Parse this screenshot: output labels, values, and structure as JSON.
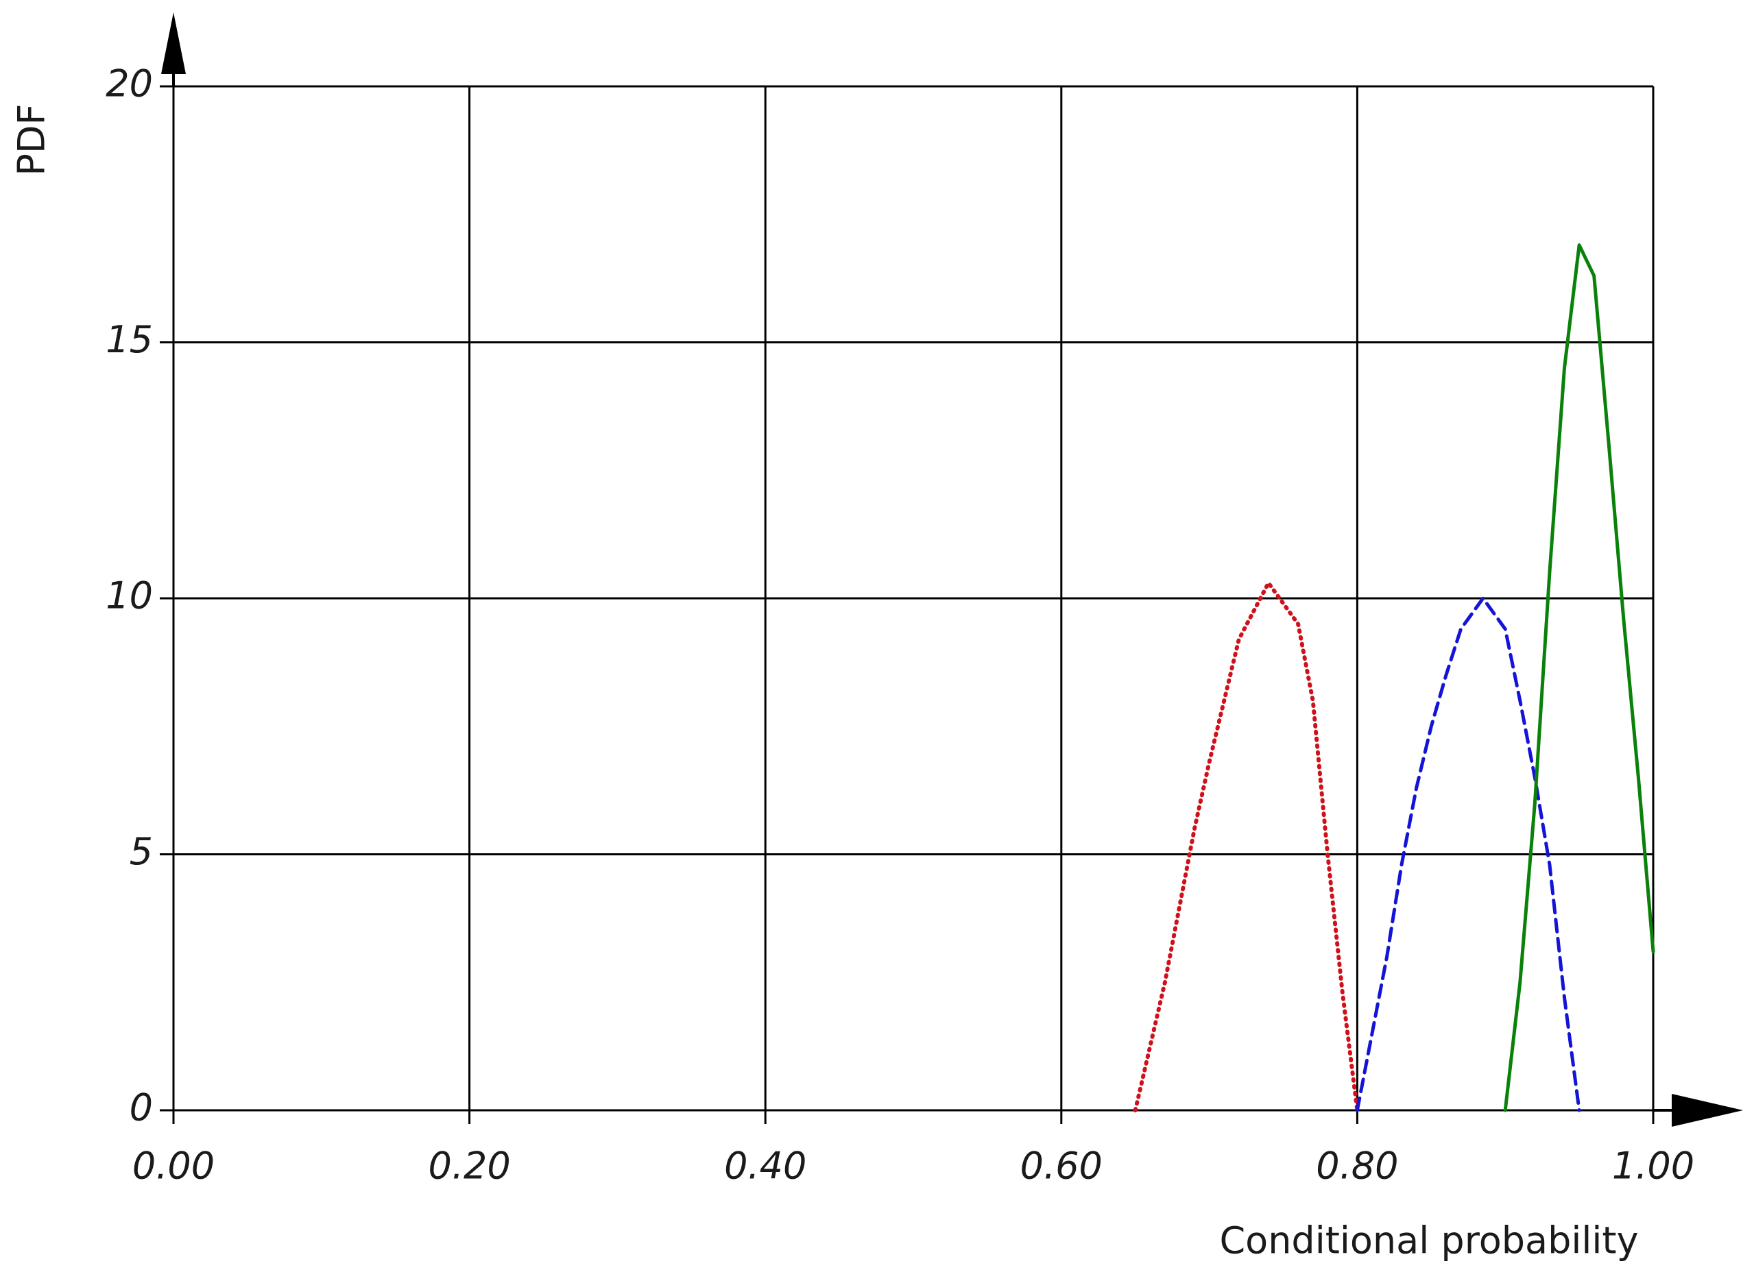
{
  "chart_data": {
    "type": "line",
    "x_label": "Conditional probability",
    "y_label": "PDF",
    "xlim": [
      0,
      1
    ],
    "ylim": [
      0,
      20
    ],
    "xticks": [
      {
        "value": 0,
        "label": "0.00"
      },
      {
        "value": 0.2,
        "label": "0.20"
      },
      {
        "value": 0.4,
        "label": "0.40"
      },
      {
        "value": 0.6,
        "label": "0.60"
      },
      {
        "value": 0.8,
        "label": "0.80"
      },
      {
        "value": 1,
        "label": "1.00"
      }
    ],
    "yticks": [
      0,
      5,
      10,
      15,
      20
    ],
    "grid": true,
    "series": [
      {
        "color": "#d0101a",
        "style": "dotted",
        "x": [
          0.65,
          0.67,
          0.69,
          0.7,
          0.72,
          0.74,
          0.76,
          0.77,
          0.78,
          0.79,
          0.8
        ],
        "values": [
          0,
          2.5,
          5.5,
          6.8,
          9.2,
          10.3,
          9.5,
          8,
          5,
          2.3,
          0
        ]
      },
      {
        "color": "#1414d8",
        "style": "dashed",
        "x": [
          0.8,
          0.81,
          0.82,
          0.83,
          0.84,
          0.85,
          0.86,
          0.87,
          0.885,
          0.9,
          0.91,
          0.92,
          0.93,
          0.94,
          0.95
        ],
        "values": [
          0,
          1.5,
          3,
          4.8,
          6.3,
          7.5,
          8.5,
          9.4,
          10,
          9.4,
          8,
          6.5,
          4.8,
          2.2,
          0
        ]
      },
      {
        "color": "#0a820a",
        "style": "solid",
        "x": [
          0.9,
          0.91,
          0.92,
          0.93,
          0.94,
          0.95,
          0.96,
          0.97,
          0.98,
          0.99,
          1.0
        ],
        "values": [
          0,
          2.5,
          6,
          10.5,
          14.5,
          16.9,
          16.3,
          13,
          9.6,
          6.5,
          3.1
        ]
      }
    ]
  }
}
